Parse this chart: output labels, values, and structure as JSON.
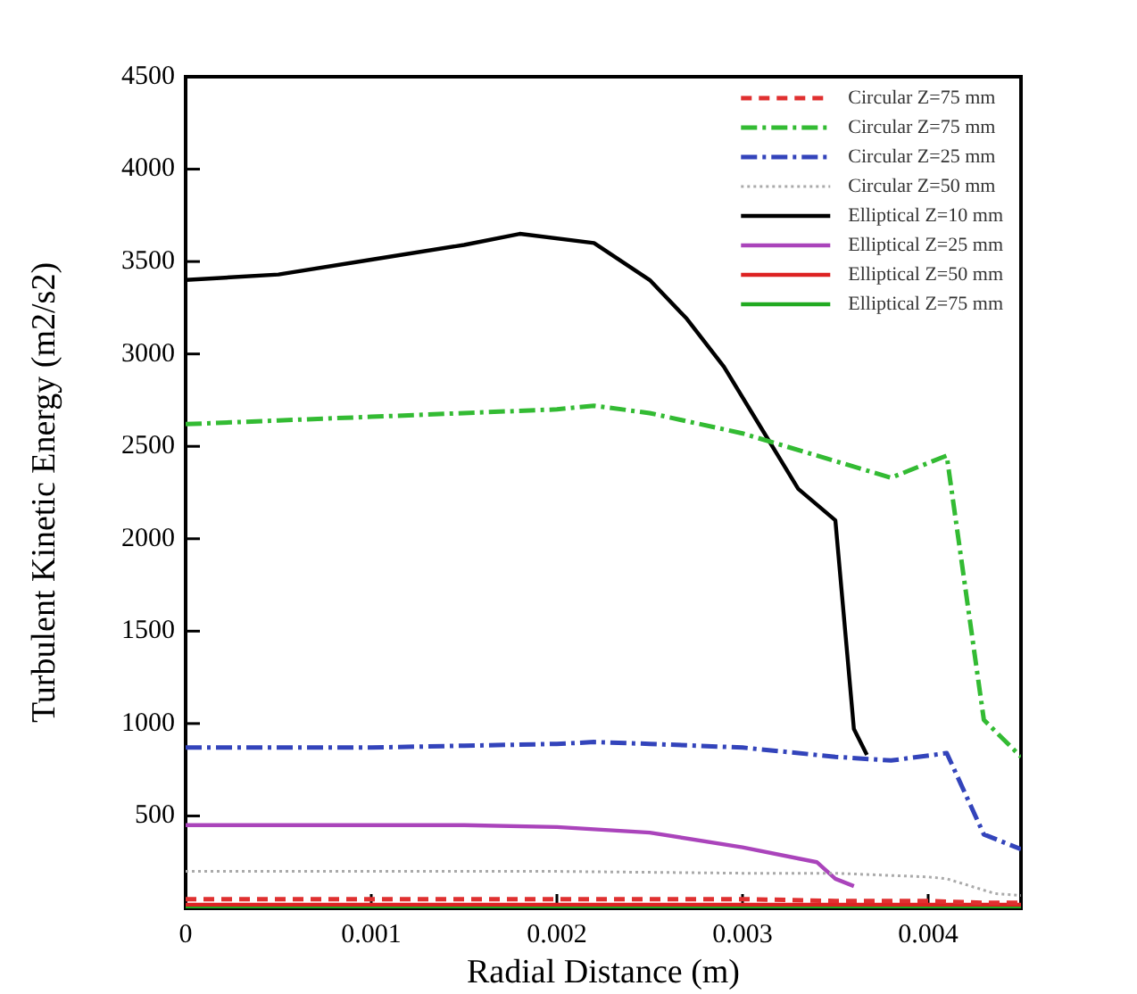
{
  "chart_data": {
    "type": "line",
    "xlabel": "Radial Distance (m)",
    "ylabel": "Turbulent Kinetic Energy (m2/s2)",
    "xlim": [
      0,
      0.0045
    ],
    "xticks": [
      0,
      0.001,
      0.002,
      0.003,
      0.004
    ],
    "ylim": [
      0,
      4500
    ],
    "yticks": [
      500,
      1000,
      1500,
      2000,
      2500,
      3000,
      3500,
      4000,
      4500
    ],
    "grid": false,
    "legend": "top right",
    "marker": "none",
    "series": [
      {
        "name": "Circular Z=75 mm",
        "color": "#e03030",
        "line_style": "dashed",
        "x": [
          0,
          0.001,
          0.002,
          0.003,
          0.0035,
          0.004,
          0.0043,
          0.0045
        ],
        "values": [
          50,
          50,
          50,
          50,
          40,
          40,
          30,
          30
        ]
      },
      {
        "name": "Circular Z=75 mm",
        "color": "#33bb33",
        "line_style": "dashdot",
        "x": [
          0,
          0.0005,
          0.001,
          0.0015,
          0.002,
          0.0022,
          0.0025,
          0.003,
          0.0035,
          0.0038,
          0.0041,
          0.0043,
          0.0045
        ],
        "values": [
          2620,
          2640,
          2660,
          2680,
          2700,
          2720,
          2680,
          2570,
          2420,
          2330,
          2450,
          1020,
          820
        ]
      },
      {
        "name": "Circular Z=25 mm",
        "color": "#3344bb",
        "line_style": "dashdot",
        "x": [
          0,
          0.001,
          0.0015,
          0.002,
          0.0022,
          0.0025,
          0.003,
          0.0035,
          0.0038,
          0.0041,
          0.0043,
          0.0045
        ],
        "values": [
          870,
          870,
          880,
          890,
          900,
          890,
          870,
          820,
          800,
          840,
          400,
          320
        ]
      },
      {
        "name": "Circular Z=50 mm",
        "color": "#aaaaaa",
        "line_style": "dotted",
        "x": [
          0,
          0.001,
          0.002,
          0.003,
          0.0035,
          0.004,
          0.0041,
          0.00436,
          0.0045
        ],
        "values": [
          200,
          200,
          200,
          190,
          190,
          170,
          160,
          80,
          70
        ]
      },
      {
        "name": "Elliptical Z=10 mm",
        "color": "#000000",
        "line_style": "solid",
        "x": [
          0,
          0.0005,
          0.001,
          0.0015,
          0.0018,
          0.0022,
          0.0025,
          0.0027,
          0.0029,
          0.0031,
          0.0033,
          0.0035,
          0.0036,
          0.00367
        ],
        "values": [
          3400,
          3430,
          3510,
          3590,
          3650,
          3600,
          3400,
          3190,
          2930,
          2600,
          2270,
          2100,
          970,
          830
        ]
      },
      {
        "name": "Elliptical Z=25 mm",
        "color": "#aa44bb",
        "line_style": "solid",
        "x": [
          0,
          0.001,
          0.0015,
          0.002,
          0.0025,
          0.003,
          0.0034,
          0.0035,
          0.0036
        ],
        "values": [
          450,
          450,
          450,
          440,
          410,
          330,
          250,
          160,
          120
        ]
      },
      {
        "name": "Elliptical Z=50 mm",
        "color": "#dd2222",
        "line_style": "solid",
        "x": [
          0,
          0.001,
          0.002,
          0.003,
          0.004,
          0.0045
        ],
        "values": [
          20,
          20,
          20,
          20,
          20,
          20
        ]
      },
      {
        "name": "Elliptical Z=75 mm",
        "color": "#22aa22",
        "line_style": "solid",
        "x": [
          0,
          0.001,
          0.002,
          0.003,
          0.004,
          0.0045
        ],
        "values": [
          10,
          10,
          10,
          10,
          10,
          10
        ]
      }
    ]
  }
}
